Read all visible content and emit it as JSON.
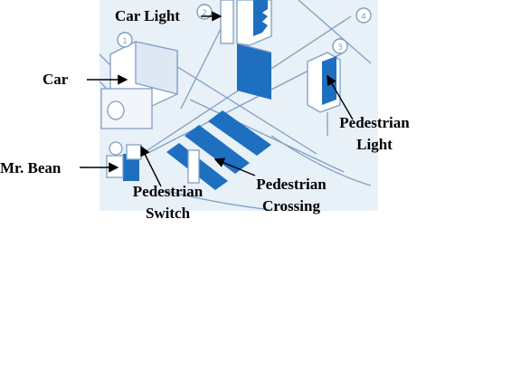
{
  "labels": {
    "car_light": "Car Light",
    "car": "Car",
    "mr_bean": "Mr. Bean",
    "pedestrian_switch": [
      "Pedestrian",
      "Switch"
    ],
    "pedestrian_crossing": [
      "Pedestrian",
      "Crossing"
    ],
    "pedestrian_light": [
      "Pedestrian",
      "Light"
    ]
  },
  "callout_numbers": [
    "1",
    "2",
    "3",
    "4"
  ],
  "colors": {
    "background": "#ffffff",
    "illustration_bg": "#e8f0f8",
    "illustration_line": "#7f9fc2",
    "illustration_fill": "#1e6fc0",
    "label_text": "#000000"
  }
}
